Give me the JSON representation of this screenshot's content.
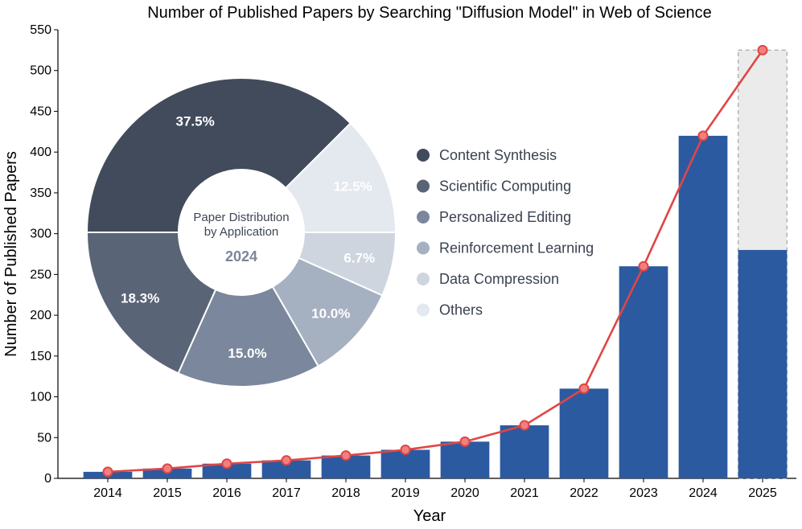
{
  "chart_data": [
    {
      "type": "bar",
      "title": "Number of Published Papers by Searching \"Diffusion Model\" in Web of Science",
      "xlabel": "Year",
      "ylabel": "Number of Published Papers",
      "ylim": [
        0,
        550
      ],
      "yticks": [
        0,
        50,
        100,
        150,
        200,
        250,
        300,
        350,
        400,
        450,
        500,
        550
      ],
      "categories": [
        "2014",
        "2015",
        "2016",
        "2017",
        "2018",
        "2019",
        "2020",
        "2021",
        "2022",
        "2023",
        "2024",
        "2025"
      ],
      "values": [
        8,
        12,
        18,
        22,
        28,
        35,
        45,
        65,
        110,
        260,
        420,
        280
      ],
      "projected": {
        "category": "2025",
        "value": 525
      },
      "line_values": [
        8,
        12,
        18,
        22,
        28,
        35,
        45,
        65,
        110,
        260,
        420,
        525
      ],
      "colors": {
        "bar": "#2c5aa0",
        "projected_fill": "#ebebeb",
        "projected_stroke": "#b3b3b3",
        "line": "#e14545",
        "marker_fill": "#f08080"
      }
    },
    {
      "type": "pie",
      "center_title": "Paper Distribution",
      "center_subtitle": "by Application",
      "center_year": "2024",
      "slices": [
        {
          "label": "Content Synthesis",
          "value": 37.5,
          "display": "37.5%",
          "color": "#424b5c",
          "text_color": "#ffffff"
        },
        {
          "label": "Others",
          "value": 12.5,
          "display": "12.5%",
          "color": "#e4e8ef",
          "text_color": "#ffffff"
        },
        {
          "label": "Data Compression",
          "value": 6.7,
          "display": "6.7%",
          "color": "#cfd5df",
          "text_color": "#ffffff"
        },
        {
          "label": "Reinforcement Learning",
          "value": 10.0,
          "display": "10.0%",
          "color": "#a5b0c1",
          "text_color": "#ffffff"
        },
        {
          "label": "Personalized Editing",
          "value": 15.0,
          "display": "15.0%",
          "color": "#7b879c",
          "text_color": "#ffffff"
        },
        {
          "label": "Scientific Computing",
          "value": 18.3,
          "display": "18.3%",
          "color": "#5a6477",
          "text_color": "#ffffff"
        }
      ],
      "legend": [
        {
          "label": "Content Synthesis",
          "color": "#424b5c"
        },
        {
          "label": "Scientific Computing",
          "color": "#5a6477"
        },
        {
          "label": "Personalized Editing",
          "color": "#7b879c"
        },
        {
          "label": "Reinforcement Learning",
          "color": "#a5b0c1"
        },
        {
          "label": "Data Compression",
          "color": "#cfd5df"
        },
        {
          "label": "Others",
          "color": "#e4e8ef"
        }
      ]
    }
  ]
}
